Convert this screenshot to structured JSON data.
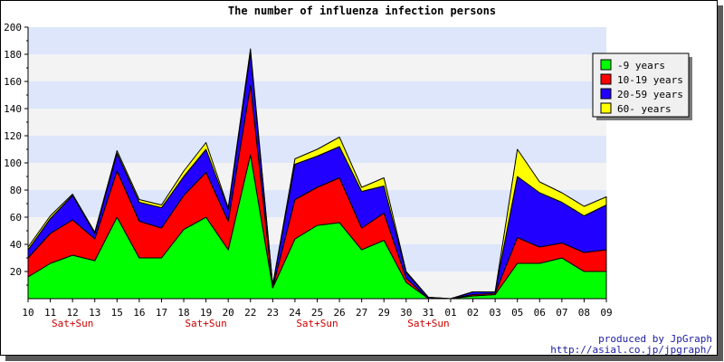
{
  "chart_data": {
    "type": "area",
    "stacked": true,
    "title": "The number of influenza infection persons",
    "xlabel": "",
    "ylabel": "",
    "categories": [
      "10",
      "11",
      "12",
      "13",
      "15",
      "16",
      "17",
      "18",
      "19",
      "20",
      "22",
      "23",
      "24",
      "25",
      "26",
      "27",
      "29",
      "30",
      "31",
      "01",
      "02",
      "03",
      "05",
      "06",
      "07",
      "08",
      "09"
    ],
    "weekend_labels": [
      {
        "category": "12",
        "text": "Sat+Sun"
      },
      {
        "category": "19",
        "text": "Sat+Sun"
      },
      {
        "category": "25",
        "text": "Sat+Sun"
      },
      {
        "category": "31",
        "text": "Sat+Sun"
      }
    ],
    "ylim": [
      0,
      200
    ],
    "yticks": [
      20,
      40,
      60,
      80,
      100,
      120,
      140,
      160,
      180,
      200
    ],
    "grid": true,
    "legend_position": "top-right",
    "series": [
      {
        "name": "-9 years",
        "color": "#00ff00",
        "values": [
          16,
          26,
          32,
          28,
          60,
          30,
          30,
          51,
          60,
          36,
          106,
          8,
          44,
          54,
          56,
          36,
          43,
          12,
          0,
          0,
          2,
          3,
          26,
          26,
          30,
          20,
          20
        ]
      },
      {
        "name": "10-19 years",
        "color": "#ff0000",
        "values": [
          14,
          22,
          26,
          16,
          34,
          27,
          22,
          25,
          33,
          21,
          51,
          0,
          29,
          28,
          33,
          16,
          20,
          3,
          0,
          0,
          1,
          1,
          19,
          12,
          11,
          14,
          16
        ]
      },
      {
        "name": "20-59 years",
        "color": "#2200ff",
        "values": [
          6,
          11,
          18,
          4,
          13,
          14,
          15,
          14,
          17,
          9,
          24,
          2,
          26,
          23,
          23,
          27,
          20,
          4,
          1,
          0,
          2,
          1,
          45,
          40,
          30,
          27,
          33
        ]
      },
      {
        "name": "60- years",
        "color": "#ffff00",
        "values": [
          2,
          2,
          1,
          1,
          2,
          2,
          2,
          4,
          5,
          1,
          3,
          0,
          4,
          5,
          7,
          3,
          6,
          1,
          0,
          0,
          0,
          0,
          20,
          8,
          7,
          7,
          6
        ]
      }
    ]
  },
  "credits": {
    "line1": "produced by JpGraph",
    "line2": "http://asial.co.jp/jpgraph/"
  }
}
